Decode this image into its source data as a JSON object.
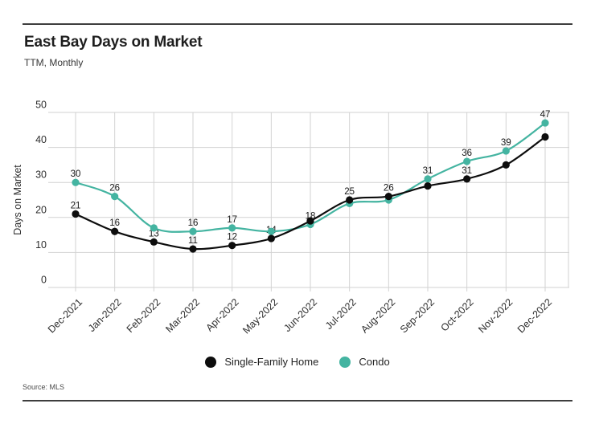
{
  "header": {
    "title": "East Bay Days on Market",
    "subtitle": "TTM, Monthly"
  },
  "source": {
    "text": "Source: MLS"
  },
  "legend": {
    "items": [
      {
        "label": "Single-Family Home",
        "color": "#0d0d0d"
      },
      {
        "label": "Condo",
        "color": "#44b4a1"
      }
    ]
  },
  "colors": {
    "single_family": "#0d0d0d",
    "condo": "#44b4a1",
    "gridline": "#d2d2d2",
    "axis_text": "#2e2e2e",
    "data_label": "#161616",
    "divider": "#3e3e3e"
  },
  "chart_data": {
    "type": "line",
    "title": "East Bay Days on Market",
    "subtitle": "TTM, Monthly",
    "xlabel": "",
    "ylabel": "Days on Market",
    "ylim": [
      0,
      50
    ],
    "yticks": [
      0,
      10,
      20,
      30,
      40,
      50
    ],
    "grid": true,
    "legend_position": "bottom",
    "categories": [
      "Dec-2021",
      "Jan-2022",
      "Feb-2022",
      "Mar-2022",
      "Apr-2022",
      "May-2022",
      "Jun-2022",
      "Jul-2022",
      "Aug-2022",
      "Sep-2022",
      "Oct-2022",
      "Nov-2022",
      "Dec-2022"
    ],
    "series": [
      {
        "name": "Single-Family Home",
        "color": "#0d0d0d",
        "values": [
          21,
          16,
          13,
          11,
          12,
          14,
          19,
          25,
          26,
          29,
          31,
          35,
          43
        ],
        "point_labels": [
          "21",
          "16",
          "13",
          "11",
          "12",
          "14",
          null,
          "25",
          "26",
          null,
          "31",
          null,
          null
        ]
      },
      {
        "name": "Condo",
        "color": "#44b4a1",
        "values": [
          30,
          26,
          17,
          16,
          17,
          16,
          18,
          24,
          25,
          31,
          36,
          39,
          47
        ],
        "point_labels": [
          "30",
          "26",
          null,
          "16",
          "17",
          null,
          "18",
          null,
          null,
          "31",
          "36",
          "39",
          "47"
        ]
      }
    ]
  }
}
